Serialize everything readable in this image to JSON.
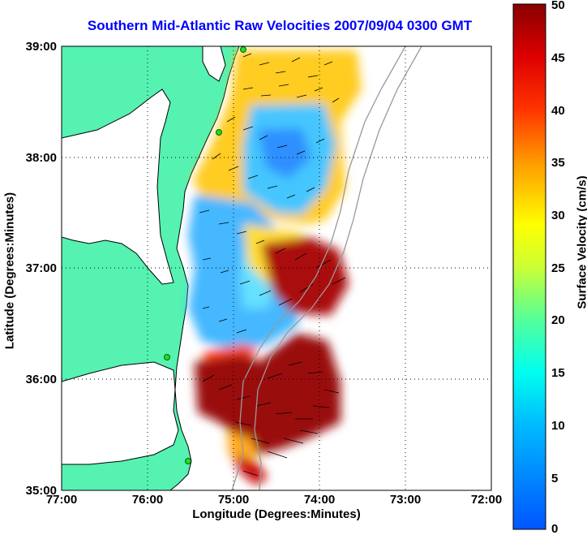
{
  "title": "Southern Mid-Atlantic Raw Velocities 2007/09/04 0300 GMT",
  "x_axis": {
    "label": "Longitude (Degrees:Minutes)",
    "ticks": [
      "77:00",
      "76:00",
      "75:00",
      "74:00",
      "73:00",
      "72:00"
    ]
  },
  "y_axis": {
    "label": "Latitude (Degrees:Minutes)",
    "ticks": [
      "39:00",
      "38:00",
      "37:00",
      "36:00",
      "35:00"
    ]
  },
  "colorbar": {
    "label": "Surface Velocity (cm/s)",
    "ticks": [
      "50",
      "45",
      "40",
      "35",
      "30",
      "25",
      "20",
      "15",
      "10",
      "5",
      "0"
    ],
    "min": 0,
    "max": 50,
    "colormap": "jet"
  },
  "map": {
    "lon_range": [
      -77,
      -72
    ],
    "lat_range": [
      35,
      39
    ],
    "land_color": "#55f2b2",
    "grid": "dotted",
    "site_marker_color": "#22dd22"
  }
}
